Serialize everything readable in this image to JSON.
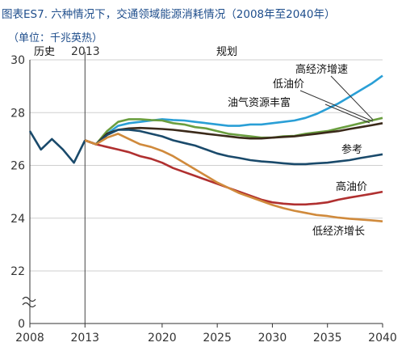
{
  "title": "图表ES7. 六种情况下，交通领域能源消耗情况（2008年至2040年）",
  "unit": "（单位：千兆英热）",
  "chart_data": {
    "type": "line",
    "xlim": [
      2008,
      2040
    ],
    "ylim": [
      20,
      30
    ],
    "y_axis_break": true,
    "x_ticks": [
      2008,
      2013,
      2020,
      2025,
      2030,
      2035,
      2040
    ],
    "y_ticks": [
      0,
      22,
      24,
      26,
      28,
      30
    ],
    "grid": "horizontal",
    "divider_year": 2013,
    "history_label": "历史",
    "divider_label": "2013",
    "projection_label": "规划",
    "series": [
      {
        "name": "历史",
        "color": "#1a4a6b",
        "x": [
          2008,
          2009,
          2010,
          2011,
          2012,
          2013
        ],
        "y": [
          27.3,
          26.6,
          27.0,
          26.6,
          26.1,
          26.95
        ]
      },
      {
        "name": "高经济增速",
        "color": "#2a9fd6",
        "x": [
          2013,
          2014,
          2015,
          2016,
          2017,
          2018,
          2019,
          2020,
          2021,
          2022,
          2023,
          2024,
          2025,
          2026,
          2027,
          2028,
          2029,
          2030,
          2031,
          2032,
          2033,
          2034,
          2035,
          2036,
          2037,
          2038,
          2039,
          2040
        ],
        "y": [
          26.95,
          26.8,
          27.2,
          27.5,
          27.6,
          27.65,
          27.7,
          27.75,
          27.72,
          27.7,
          27.65,
          27.6,
          27.55,
          27.5,
          27.5,
          27.55,
          27.55,
          27.6,
          27.65,
          27.7,
          27.8,
          27.95,
          28.15,
          28.35,
          28.6,
          28.85,
          29.1,
          29.4
        ]
      },
      {
        "name": "低油价",
        "color": "#6a9e3f",
        "x": [
          2013,
          2014,
          2015,
          2016,
          2017,
          2018,
          2019,
          2020,
          2021,
          2022,
          2023,
          2024,
          2025,
          2026,
          2027,
          2028,
          2029,
          2030,
          2031,
          2032,
          2033,
          2034,
          2035,
          2036,
          2037,
          2038,
          2039,
          2040
        ],
        "y": [
          26.95,
          26.8,
          27.3,
          27.65,
          27.75,
          27.75,
          27.72,
          27.7,
          27.6,
          27.55,
          27.45,
          27.4,
          27.3,
          27.2,
          27.15,
          27.1,
          27.05,
          27.05,
          27.1,
          27.12,
          27.2,
          27.25,
          27.3,
          27.4,
          27.5,
          27.6,
          27.7,
          27.8
        ]
      },
      {
        "name": "油气资源丰富",
        "color": "#3b2a1a",
        "x": [
          2013,
          2014,
          2015,
          2016,
          2017,
          2018,
          2019,
          2020,
          2021,
          2022,
          2023,
          2024,
          2025,
          2026,
          2027,
          2028,
          2029,
          2030,
          2031,
          2032,
          2033,
          2034,
          2035,
          2036,
          2037,
          2038,
          2039,
          2040
        ],
        "y": [
          26.95,
          26.8,
          27.2,
          27.35,
          27.4,
          27.42,
          27.4,
          27.38,
          27.35,
          27.3,
          27.25,
          27.2,
          27.15,
          27.1,
          27.05,
          27.02,
          27.02,
          27.05,
          27.08,
          27.1,
          27.15,
          27.2,
          27.25,
          27.3,
          27.38,
          27.45,
          27.52,
          27.6
        ]
      },
      {
        "name": "参考",
        "color": "#1a4a6b",
        "x": [
          2013,
          2014,
          2015,
          2016,
          2017,
          2018,
          2019,
          2020,
          2021,
          2022,
          2023,
          2024,
          2025,
          2026,
          2027,
          2028,
          2029,
          2030,
          2031,
          2032,
          2033,
          2034,
          2035,
          2036,
          2037,
          2038,
          2039,
          2040
        ],
        "y": [
          26.95,
          26.8,
          27.15,
          27.35,
          27.35,
          27.3,
          27.2,
          27.1,
          26.95,
          26.85,
          26.75,
          26.6,
          26.45,
          26.35,
          26.28,
          26.2,
          26.15,
          26.12,
          26.08,
          26.05,
          26.05,
          26.08,
          26.1,
          26.15,
          26.2,
          26.28,
          26.35,
          26.42
        ]
      },
      {
        "name": "高油价",
        "color": "#b03030",
        "x": [
          2013,
          2014,
          2015,
          2016,
          2017,
          2018,
          2019,
          2020,
          2021,
          2022,
          2023,
          2024,
          2025,
          2026,
          2027,
          2028,
          2029,
          2030,
          2031,
          2032,
          2033,
          2034,
          2035,
          2036,
          2037,
          2038,
          2039,
          2040
        ],
        "y": [
          26.95,
          26.8,
          26.7,
          26.6,
          26.5,
          26.35,
          26.25,
          26.1,
          25.9,
          25.75,
          25.6,
          25.45,
          25.3,
          25.15,
          25.0,
          24.85,
          24.7,
          24.6,
          24.55,
          24.52,
          24.52,
          24.55,
          24.6,
          24.7,
          24.78,
          24.85,
          24.92,
          25.0
        ]
      },
      {
        "name": "低经济增长",
        "color": "#d08a3c",
        "x": [
          2013,
          2014,
          2015,
          2016,
          2017,
          2018,
          2019,
          2020,
          2021,
          2022,
          2023,
          2024,
          2025,
          2026,
          2027,
          2028,
          2029,
          2030,
          2031,
          2032,
          2033,
          2034,
          2035,
          2036,
          2037,
          2038,
          2039,
          2040
        ],
        "y": [
          26.95,
          26.8,
          27.05,
          27.2,
          27.0,
          26.8,
          26.7,
          26.55,
          26.35,
          26.1,
          25.85,
          25.6,
          25.35,
          25.15,
          24.95,
          24.8,
          24.65,
          24.5,
          24.38,
          24.28,
          24.2,
          24.12,
          24.08,
          24.02,
          23.98,
          23.95,
          23.92,
          23.88
        ]
      }
    ],
    "annotations": [
      {
        "text": "高经济增速",
        "color": "#111"
      },
      {
        "text": "低油价",
        "color": "#111"
      },
      {
        "text": "油气资源丰富",
        "color": "#111"
      },
      {
        "text": "参考",
        "color": "#111"
      },
      {
        "text": "高油价",
        "color": "#111"
      },
      {
        "text": "低经济增长",
        "color": "#111"
      }
    ]
  }
}
